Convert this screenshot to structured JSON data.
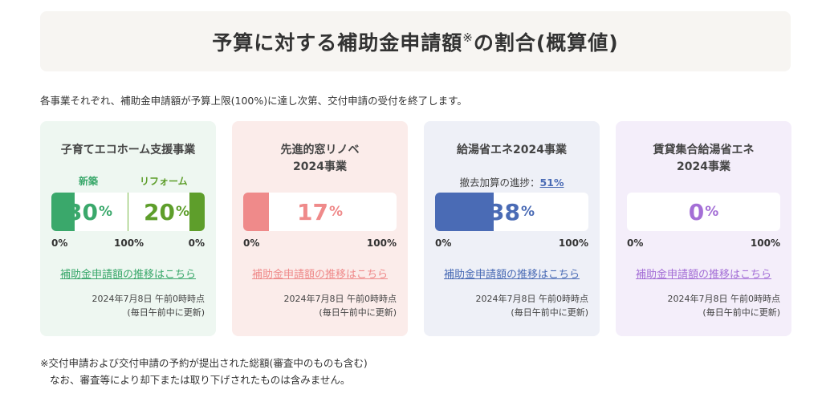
{
  "header": {
    "title": "予算に対する補助金申請額",
    "title_mark": "※",
    "title_suffix": "の割合(概算値)"
  },
  "intro": "各事業それぞれ、補助金申請額が予算上限(100%)に達し次第、交付申請の受付を終了します。",
  "colors": {
    "green": "#3aa86b",
    "olive": "#5e9e2b",
    "salmon": "#ef8a8a",
    "blue": "#4a6bb5",
    "purple": "#a46fd6"
  },
  "cards": [
    {
      "name": "子育てエコホーム支援事業",
      "sub_label_a": "新築",
      "sub_label_b": "リフォーム",
      "value_a": 30,
      "value_a_text": "30",
      "value_b": 20,
      "value_b_text": "20",
      "pct": "%",
      "scale_lo": "0%",
      "scale_mid": "100%",
      "scale_hi": "0%",
      "link": "補助金申請額の推移はこちら",
      "stamp_1": "2024年7月8日 午前0時時点",
      "stamp_2": "(毎日午前中に更新)"
    },
    {
      "name_1": "先進的窓リノベ",
      "name_2": "2024事業",
      "value": 17,
      "value_text": "17",
      "pct": "%",
      "scale_lo": "0%",
      "scale_hi": "100%",
      "link": "補助金申請額の推移はこちら",
      "stamp_1": "2024年7月8日 午前0時時点",
      "stamp_2": "(毎日午前中に更新)"
    },
    {
      "name": "給湯省エネ2024事業",
      "progress_label": "撤去加算の進捗：",
      "progress_value": "51%",
      "value": 38,
      "value_text": "38",
      "pct": "%",
      "scale_lo": "0%",
      "scale_hi": "100%",
      "link": "補助金申請額の推移はこちら",
      "stamp_1": "2024年7月8日 午前0時時点",
      "stamp_2": "(毎日午前中に更新)"
    },
    {
      "name_1": "賃貸集合給湯省エネ",
      "name_2": "2024事業",
      "value": 0,
      "value_text": "0",
      "pct": "%",
      "scale_lo": "0%",
      "scale_hi": "100%",
      "link": "補助金申請額の推移はこちら",
      "stamp_1": "2024年7月8日 午前0時時点",
      "stamp_2": "(毎日午前中に更新)"
    }
  ],
  "footnote": {
    "line_1": "※交付申請および交付申請の予約が提出された総額(審査中のものも含む)",
    "line_2": "なお、審査等により却下または取り下げされたものは含みません。"
  }
}
